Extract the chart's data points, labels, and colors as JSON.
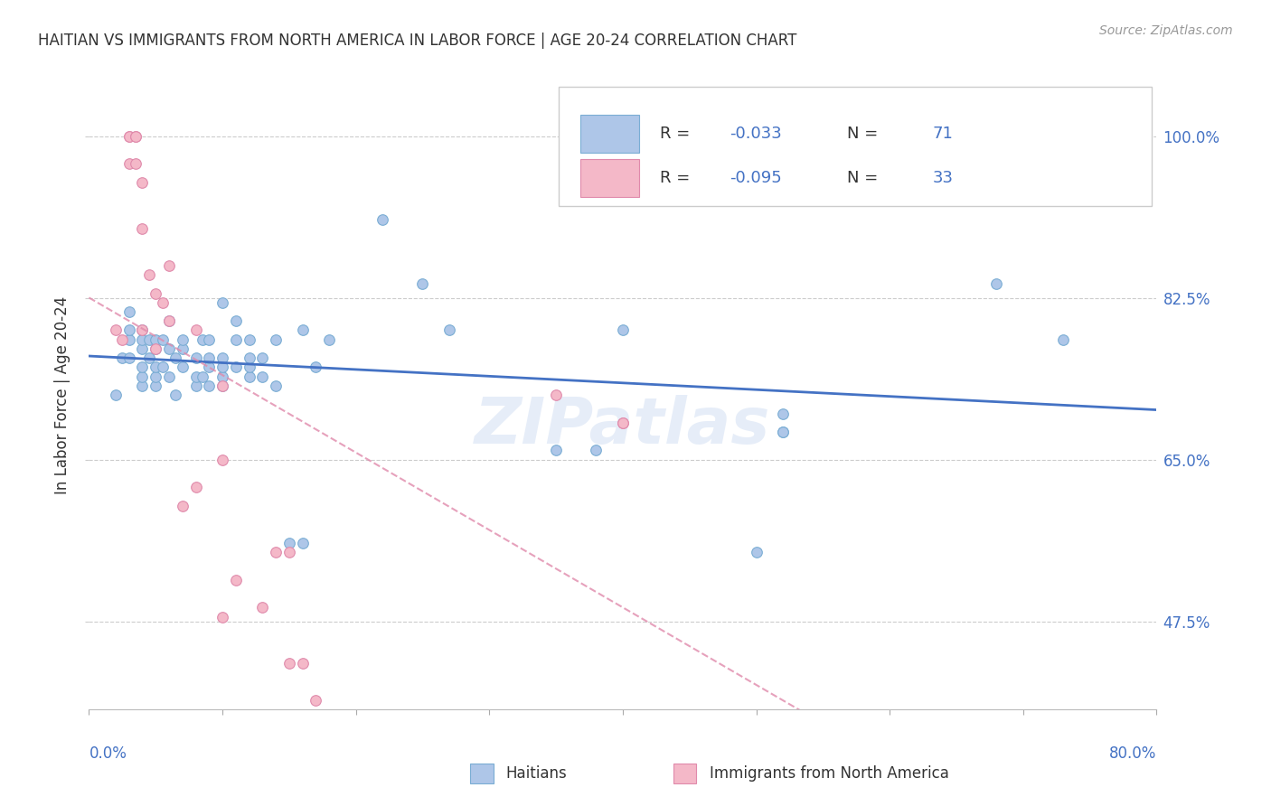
{
  "title": "HAITIAN VS IMMIGRANTS FROM NORTH AMERICA IN LABOR FORCE | AGE 20-24 CORRELATION CHART",
  "source": "Source: ZipAtlas.com",
  "ylabel": "In Labor Force | Age 20-24",
  "yticks": [
    "47.5%",
    "65.0%",
    "82.5%",
    "100.0%"
  ],
  "ytick_values": [
    0.475,
    0.65,
    0.825,
    1.0
  ],
  "xmin": 0.0,
  "xmax": 0.8,
  "ymin": 0.38,
  "ymax": 1.06,
  "haitians_color": "#aec6e8",
  "haitians_edge": "#7aadd4",
  "immigrants_color": "#f4b8c8",
  "immigrants_edge": "#e08aab",
  "line_blue": "#4472c4",
  "line_pink_color": "#e08aab",
  "watermark": "ZIPatlas",
  "haitians_R": -0.033,
  "immigrants_R": -0.095,
  "haitians_N": 71,
  "immigrants_N": 33,
  "haitians_x": [
    0.02,
    0.025,
    0.03,
    0.03,
    0.03,
    0.03,
    0.04,
    0.04,
    0.04,
    0.04,
    0.04,
    0.04,
    0.045,
    0.045,
    0.05,
    0.05,
    0.05,
    0.05,
    0.05,
    0.055,
    0.055,
    0.06,
    0.06,
    0.06,
    0.065,
    0.065,
    0.07,
    0.07,
    0.07,
    0.08,
    0.08,
    0.08,
    0.085,
    0.085,
    0.09,
    0.09,
    0.09,
    0.09,
    0.1,
    0.1,
    0.1,
    0.1,
    0.1,
    0.11,
    0.11,
    0.11,
    0.12,
    0.12,
    0.12,
    0.12,
    0.13,
    0.13,
    0.14,
    0.14,
    0.15,
    0.16,
    0.16,
    0.17,
    0.18,
    0.22,
    0.25,
    0.27,
    0.35,
    0.38,
    0.4,
    0.5,
    0.52,
    0.52,
    0.52,
    0.68,
    0.73
  ],
  "haitians_y": [
    0.72,
    0.76,
    0.76,
    0.78,
    0.79,
    0.81,
    0.73,
    0.74,
    0.75,
    0.77,
    0.78,
    0.79,
    0.76,
    0.78,
    0.73,
    0.74,
    0.75,
    0.77,
    0.78,
    0.75,
    0.78,
    0.74,
    0.77,
    0.8,
    0.72,
    0.76,
    0.75,
    0.77,
    0.78,
    0.73,
    0.74,
    0.76,
    0.74,
    0.78,
    0.73,
    0.75,
    0.76,
    0.78,
    0.73,
    0.74,
    0.75,
    0.76,
    0.82,
    0.75,
    0.78,
    0.8,
    0.74,
    0.75,
    0.76,
    0.78,
    0.74,
    0.76,
    0.73,
    0.78,
    0.56,
    0.79,
    0.56,
    0.75,
    0.78,
    0.91,
    0.84,
    0.79,
    0.66,
    0.66,
    0.79,
    0.55,
    0.68,
    0.68,
    0.7,
    0.84,
    0.78
  ],
  "immigrants_x": [
    0.02,
    0.025,
    0.03,
    0.03,
    0.03,
    0.035,
    0.035,
    0.035,
    0.04,
    0.04,
    0.04,
    0.045,
    0.05,
    0.05,
    0.055,
    0.06,
    0.06,
    0.07,
    0.08,
    0.08,
    0.1,
    0.1,
    0.1,
    0.11,
    0.13,
    0.14,
    0.15,
    0.15,
    0.16,
    0.17,
    0.35,
    0.4,
    0.4
  ],
  "immigrants_y": [
    0.79,
    0.78,
    0.97,
    1.0,
    1.0,
    0.97,
    1.0,
    1.0,
    0.9,
    0.95,
    0.79,
    0.85,
    0.77,
    0.83,
    0.82,
    0.86,
    0.8,
    0.6,
    0.79,
    0.62,
    0.73,
    0.65,
    0.48,
    0.52,
    0.49,
    0.55,
    0.55,
    0.43,
    0.43,
    0.39,
    0.72,
    0.69,
    0.69
  ]
}
